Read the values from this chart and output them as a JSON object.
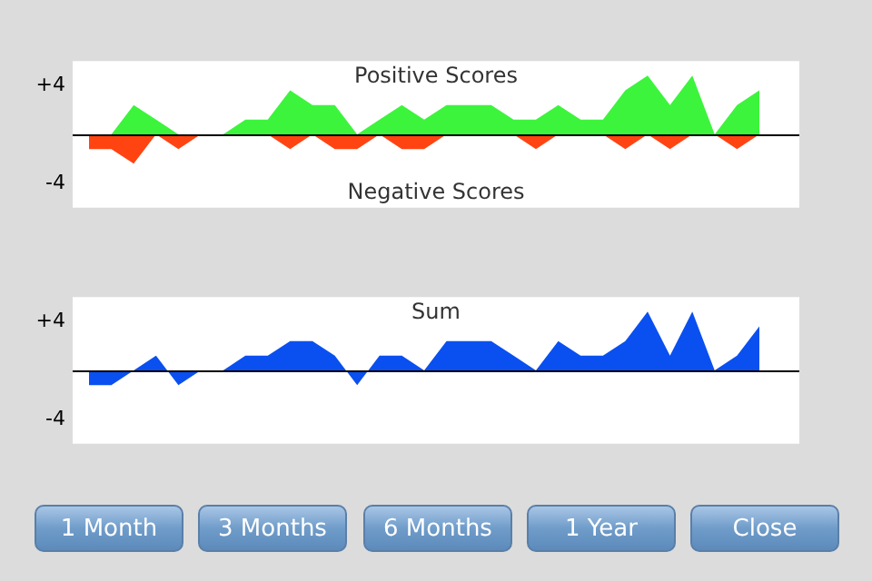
{
  "chart_data": [
    {
      "type": "area",
      "categories": [
        null,
        null,
        null,
        null,
        null,
        null,
        null,
        null,
        null,
        null,
        null,
        null,
        null,
        null,
        null,
        null,
        null,
        null,
        null,
        null,
        null,
        null,
        null,
        null,
        null,
        null,
        null,
        null,
        null,
        null,
        null
      ],
      "series": [
        {
          "name": "Positive Scores",
          "color": "#3cf43c",
          "values": [
            0,
            0,
            2.4,
            1.2,
            0,
            0,
            0,
            1.2,
            1.2,
            3.6,
            2.4,
            2.4,
            0,
            1.2,
            2.4,
            1.2,
            2.4,
            2.4,
            2.4,
            1.2,
            1.2,
            2.4,
            1.2,
            1.2,
            3.6,
            4.8,
            2.4,
            4.8,
            0,
            2.4,
            3.6
          ]
        },
        {
          "name": "Negative Scores",
          "color": "#ff4412",
          "values": [
            -1.2,
            -1.2,
            -2.4,
            0,
            -1.2,
            0,
            0,
            0,
            0,
            -1.2,
            0,
            -1.2,
            -1.2,
            0,
            -1.2,
            -1.2,
            0,
            0,
            0,
            0,
            -1.2,
            0,
            0,
            0,
            -1.2,
            0,
            -1.2,
            0,
            0,
            -1.2,
            0
          ]
        }
      ],
      "ylim": [
        -6,
        6
      ],
      "yticks": [
        {
          "value": 4,
          "label": "+4"
        },
        -4
      ],
      "tick_labels": "y",
      "grid": false,
      "legend": false
    },
    {
      "type": "area",
      "categories": [
        null,
        null,
        null,
        null,
        null,
        null,
        null,
        null,
        null,
        null,
        null,
        null,
        null,
        null,
        null,
        null,
        null,
        null,
        null,
        null,
        null,
        null,
        null,
        null,
        null,
        null,
        null,
        null,
        null,
        null,
        null
      ],
      "series": [
        {
          "name": "Sum",
          "color": "#0a50f0",
          "values": [
            -1.2,
            -1.2,
            0,
            1.2,
            -1.2,
            0,
            0,
            1.2,
            1.2,
            2.4,
            2.4,
            1.2,
            -1.2,
            1.2,
            1.2,
            0,
            2.4,
            2.4,
            2.4,
            1.2,
            0,
            2.4,
            1.2,
            1.2,
            2.4,
            4.8,
            1.2,
            4.8,
            0,
            1.2,
            3.6
          ]
        }
      ],
      "ylim": [
        -6,
        6
      ],
      "yticks": [
        {
          "value": 4,
          "label": "+4"
        },
        -4
      ],
      "tick_labels": "y",
      "grid": false,
      "legend": false
    },
    {
      "type": "other",
      "annotations": [
        "1 Month",
        "3 Months",
        "6 Months",
        "1 Year",
        "Close"
      ]
    }
  ]
}
